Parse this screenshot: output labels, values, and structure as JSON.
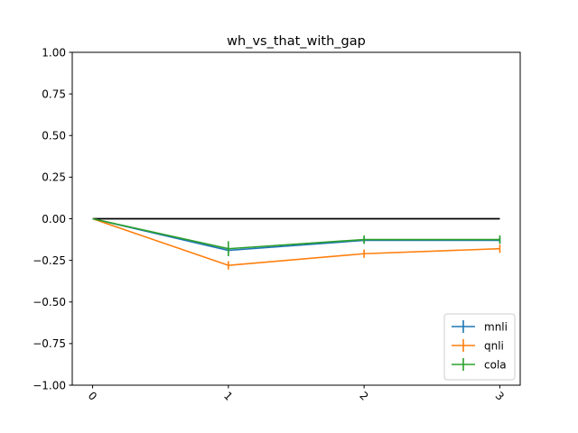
{
  "chart_data": {
    "type": "line",
    "title": "wh_vs_that_with_gap",
    "xlabel": "",
    "ylabel": "",
    "x": [
      0,
      1,
      2,
      3
    ],
    "x_tick_labels": [
      "0",
      "1",
      "2",
      "3"
    ],
    "y_ticks": [
      1.0,
      0.75,
      0.5,
      0.25,
      0.0,
      -0.25,
      -0.5,
      -0.75,
      -1.0
    ],
    "y_tick_labels": [
      "1.00",
      "0.75",
      "0.50",
      "0.25",
      "0.00",
      "−0.25",
      "−0.50",
      "−0.75",
      "−1.00"
    ],
    "xlim": [
      -0.15,
      3.15
    ],
    "ylim": [
      -1.0,
      1.0
    ],
    "grid": false,
    "legend_position": "bottom-right",
    "series": [
      {
        "name": "mnli",
        "color": "#1f77b4",
        "values": [
          0.0,
          -0.19,
          -0.13,
          -0.13
        ],
        "errors": [
          0.0,
          0.02,
          0.02,
          0.02
        ]
      },
      {
        "name": "qnli",
        "color": "#ff7f0e",
        "values": [
          0.0,
          -0.28,
          -0.21,
          -0.18
        ],
        "errors": [
          0.0,
          0.025,
          0.025,
          0.025
        ]
      },
      {
        "name": "cola",
        "color": "#2ca02c",
        "values": [
          0.0,
          -0.18,
          -0.125,
          -0.125
        ],
        "errors": [
          0.0,
          0.045,
          0.025,
          0.025
        ]
      }
    ],
    "baseline": {
      "y": 0.0,
      "color": "#000000",
      "x": [
        0,
        3
      ]
    }
  }
}
